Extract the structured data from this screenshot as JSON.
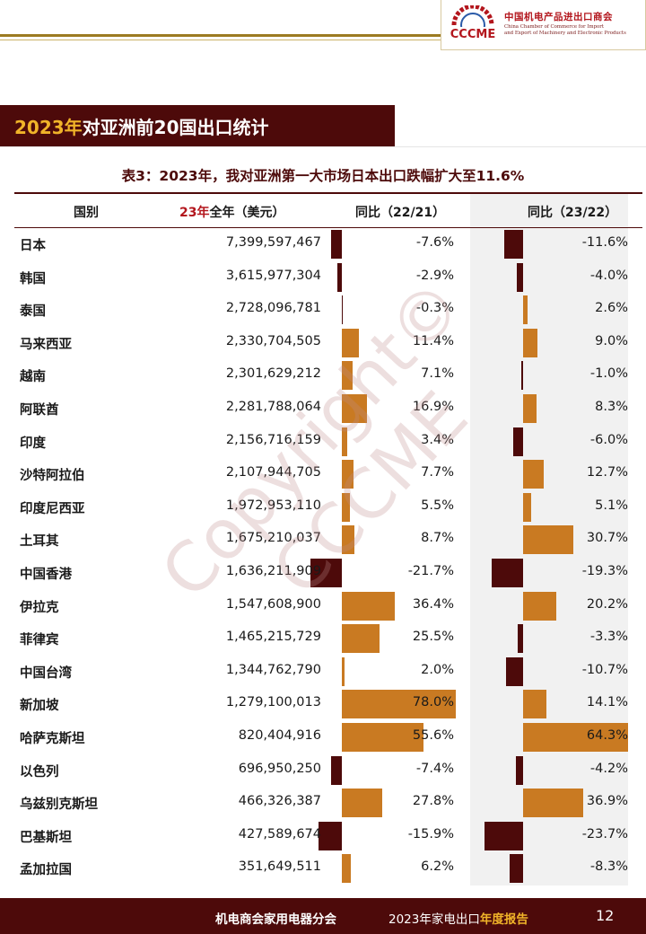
{
  "header": {
    "logo_mark": "CCCME",
    "logo_cn": "中国机电产品进出口商会",
    "logo_en_line1": "China Chamber of Commerce for Import",
    "logo_en_line2": "and Export of Machinery and Electronic Products"
  },
  "section": {
    "title_year": "2023年",
    "title_rest": "对亚洲前20国出口统计"
  },
  "caption": "表3：2023年，我对亚洲第一大市场日本出口跌幅扩大至11.6%",
  "columns": {
    "country": "国别",
    "amount_year": "23年",
    "amount_rest": "全年（美元）",
    "yoy1": "同比（22/21）",
    "yoy2": "同比（23/22）"
  },
  "chart_data": {
    "type": "table",
    "rows": [
      {
        "country": "日本",
        "amount": "7,399,597,467",
        "yoy_22_21": -7.6,
        "yoy_22_21_label": "-7.6%",
        "yoy_23_22": -11.6,
        "yoy_23_22_label": "-11.6%"
      },
      {
        "country": "韩国",
        "amount": "3,615,977,304",
        "yoy_22_21": -2.9,
        "yoy_22_21_label": "-2.9%",
        "yoy_23_22": -4.0,
        "yoy_23_22_label": "-4.0%"
      },
      {
        "country": "泰国",
        "amount": "2,728,096,781",
        "yoy_22_21": -0.3,
        "yoy_22_21_label": "-0.3%",
        "yoy_23_22": 2.6,
        "yoy_23_22_label": "2.6%"
      },
      {
        "country": "马来西亚",
        "amount": "2,330,704,505",
        "yoy_22_21": 11.4,
        "yoy_22_21_label": "11.4%",
        "yoy_23_22": 9.0,
        "yoy_23_22_label": "9.0%"
      },
      {
        "country": "越南",
        "amount": "2,301,629,212",
        "yoy_22_21": 7.1,
        "yoy_22_21_label": "7.1%",
        "yoy_23_22": -1.0,
        "yoy_23_22_label": "-1.0%"
      },
      {
        "country": "阿联酋",
        "amount": "2,281,788,064",
        "yoy_22_21": 16.9,
        "yoy_22_21_label": "16.9%",
        "yoy_23_22": 8.3,
        "yoy_23_22_label": "8.3%"
      },
      {
        "country": "印度",
        "amount": "2,156,716,159",
        "yoy_22_21": 3.4,
        "yoy_22_21_label": "3.4%",
        "yoy_23_22": -6.0,
        "yoy_23_22_label": "-6.0%"
      },
      {
        "country": "沙特阿拉伯",
        "amount": "2,107,944,705",
        "yoy_22_21": 7.7,
        "yoy_22_21_label": "7.7%",
        "yoy_23_22": 12.7,
        "yoy_23_22_label": "12.7%"
      },
      {
        "country": "印度尼西亚",
        "amount": "1,972,953,110",
        "yoy_22_21": 5.5,
        "yoy_22_21_label": "5.5%",
        "yoy_23_22": 5.1,
        "yoy_23_22_label": "5.1%"
      },
      {
        "country": "土耳其",
        "amount": "1,675,210,037",
        "yoy_22_21": 8.7,
        "yoy_22_21_label": "8.7%",
        "yoy_23_22": 30.7,
        "yoy_23_22_label": "30.7%"
      },
      {
        "country": "中国香港",
        "amount": "1,636,211,909",
        "yoy_22_21": -21.7,
        "yoy_22_21_label": "-21.7%",
        "yoy_23_22": -19.3,
        "yoy_23_22_label": "-19.3%"
      },
      {
        "country": "伊拉克",
        "amount": "1,547,608,900",
        "yoy_22_21": 36.4,
        "yoy_22_21_label": "36.4%",
        "yoy_23_22": 20.2,
        "yoy_23_22_label": "20.2%"
      },
      {
        "country": "菲律宾",
        "amount": "1,465,215,729",
        "yoy_22_21": 25.5,
        "yoy_22_21_label": "25.5%",
        "yoy_23_22": -3.3,
        "yoy_23_22_label": "-3.3%"
      },
      {
        "country": "中国台湾",
        "amount": "1,344,762,790",
        "yoy_22_21": 2.0,
        "yoy_22_21_label": "2.0%",
        "yoy_23_22": -10.7,
        "yoy_23_22_label": "-10.7%"
      },
      {
        "country": "新加坡",
        "amount": "1,279,100,013",
        "yoy_22_21": 78.0,
        "yoy_22_21_label": "78.0%",
        "yoy_23_22": 14.1,
        "yoy_23_22_label": "14.1%"
      },
      {
        "country": "哈萨克斯坦",
        "amount": "820,404,916",
        "yoy_22_21": 55.6,
        "yoy_22_21_label": "55.6%",
        "yoy_23_22": 64.3,
        "yoy_23_22_label": "64.3%"
      },
      {
        "country": "以色列",
        "amount": "696,950,250",
        "yoy_22_21": -7.4,
        "yoy_22_21_label": "-7.4%",
        "yoy_23_22": -4.2,
        "yoy_23_22_label": "-4.2%"
      },
      {
        "country": "乌兹别克斯坦",
        "amount": "466,326,387",
        "yoy_22_21": 27.8,
        "yoy_22_21_label": "27.8%",
        "yoy_23_22": 36.9,
        "yoy_23_22_label": "36.9%"
      },
      {
        "country": "巴基斯坦",
        "amount": "427,589,674",
        "yoy_22_21": -15.9,
        "yoy_22_21_label": "-15.9%",
        "yoy_23_22": -23.7,
        "yoy_23_22_label": "-23.7%"
      },
      {
        "country": "孟加拉国",
        "amount": "351,649,511",
        "yoy_22_21": 6.2,
        "yoy_22_21_label": "6.2%",
        "yoy_23_22": -8.3,
        "yoy_23_22_label": "-8.3%"
      }
    ]
  },
  "colors": {
    "negative": "#4d0a0a",
    "positive": "#c97a22",
    "accent": "#f0b429"
  },
  "watermark": "Copyright© CCCME",
  "footer": {
    "org": "机电商会家用电器分会",
    "report_prefix": "2023年家电出口",
    "report_emphasis": "年度报告",
    "page": "12"
  }
}
